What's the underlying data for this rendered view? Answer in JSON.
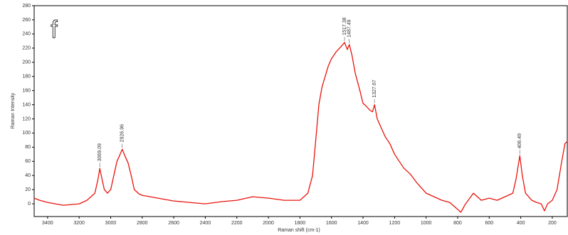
{
  "chart_data": {
    "type": "line",
    "annotation": "f",
    "xlabel": "Raman shift (cm-1)",
    "ylabel": "Raman Intensity",
    "xlim": [
      3485,
      105
    ],
    "ylim": [
      -18,
      280
    ],
    "xticks": [
      3400,
      3200,
      3000,
      2800,
      2600,
      2400,
      2200,
      2000,
      1800,
      1600,
      1400,
      1200,
      1000,
      800,
      600,
      400,
      200
    ],
    "yticks": [
      0,
      20,
      40,
      60,
      80,
      100,
      120,
      140,
      160,
      180,
      200,
      220,
      240,
      260,
      280
    ],
    "series": [
      {
        "color": "#e8140c",
        "x": [
          3485,
          3450,
          3400,
          3350,
          3300,
          3250,
          3200,
          3150,
          3100,
          3080,
          3069,
          3055,
          3040,
          3020,
          3000,
          2980,
          2960,
          2940,
          2927,
          2910,
          2890,
          2870,
          2850,
          2820,
          2800,
          2700,
          2600,
          2500,
          2400,
          2300,
          2200,
          2100,
          2000,
          1900,
          1800,
          1750,
          1720,
          1700,
          1680,
          1660,
          1640,
          1620,
          1600,
          1570,
          1540,
          1517,
          1500,
          1487,
          1470,
          1450,
          1420,
          1400,
          1380,
          1360,
          1340,
          1327,
          1310,
          1290,
          1260,
          1230,
          1200,
          1170,
          1140,
          1100,
          1060,
          1020,
          1000,
          950,
          900,
          850,
          800,
          780,
          750,
          700,
          650,
          600,
          550,
          500,
          450,
          430,
          406,
          390,
          370,
          330,
          300,
          270,
          250,
          230,
          200,
          170,
          140,
          120,
          105
        ],
        "values": [
          8,
          5,
          2,
          0,
          -2,
          -1,
          0,
          5,
          15,
          35,
          50,
          35,
          20,
          15,
          20,
          40,
          60,
          70,
          77,
          68,
          58,
          40,
          20,
          14,
          12,
          8,
          4,
          2,
          0,
          3,
          5,
          10,
          8,
          5,
          5,
          15,
          40,
          90,
          140,
          165,
          180,
          195,
          205,
          215,
          222,
          228,
          218,
          225,
          210,
          185,
          160,
          142,
          138,
          133,
          130,
          140,
          120,
          110,
          95,
          85,
          70,
          60,
          50,
          42,
          30,
          20,
          15,
          10,
          5,
          2,
          -8,
          -12,
          0,
          15,
          5,
          8,
          5,
          10,
          15,
          35,
          68,
          40,
          15,
          5,
          2,
          0,
          -10,
          0,
          5,
          20,
          60,
          85,
          88
        ]
      }
    ],
    "peaks": [
      {
        "x": 3069.09,
        "y": 50,
        "label": "3069.09"
      },
      {
        "x": 2926.96,
        "y": 77,
        "label": "2926.96"
      },
      {
        "x": 1517.38,
        "y": 228,
        "label": "1517.38"
      },
      {
        "x": 1487.49,
        "y": 225,
        "label": "1487.49"
      },
      {
        "x": 1327.67,
        "y": 140,
        "label": "1327.67"
      },
      {
        "x": 406.49,
        "y": 68,
        "label": "406.49"
      }
    ]
  }
}
